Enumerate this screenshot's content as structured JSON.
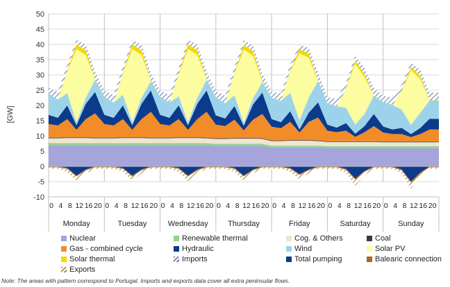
{
  "chart_data": {
    "type": "area",
    "title": "",
    "ylabel": "[GW]",
    "ylim": [
      -10,
      50
    ],
    "yticks": [
      -10,
      -5,
      0,
      5,
      10,
      15,
      20,
      25,
      30,
      35,
      40,
      45,
      50
    ],
    "grid": "horizontal",
    "legend_position": "bottom",
    "days": [
      "Monday",
      "Tuesday",
      "Wednesday",
      "Thursday",
      "Friday",
      "Saturday",
      "Sunday"
    ],
    "hour_labels": [
      "0",
      "4",
      "8",
      "12",
      "16",
      "20"
    ],
    "x_hours": [
      0,
      4,
      8,
      12,
      16,
      20
    ],
    "note": "Note: The areas with pattern correspond to Portugal. Imports and exports data cover all extra peninsular flows.",
    "series": [
      {
        "name": "Nuclear",
        "color": "#a5a5dc",
        "pattern": false,
        "values": [
          [
            7,
            7,
            7,
            7,
            7,
            7
          ],
          [
            7,
            7,
            7,
            7,
            7,
            7
          ],
          [
            7,
            7,
            7,
            7,
            7,
            7
          ],
          [
            6.8,
            6.8,
            6.8,
            6.8,
            6.8,
            6.8
          ],
          [
            6.2,
            6.2,
            6.2,
            6.2,
            6.2,
            6.2
          ],
          [
            6,
            6,
            6,
            6,
            6,
            6
          ],
          [
            6,
            6,
            6,
            6,
            6,
            6
          ]
        ]
      },
      {
        "name": "Renewable thermal",
        "color": "#8fd48f",
        "pattern": false,
        "values": [
          [
            0.6,
            0.6,
            0.6,
            0.6,
            0.6,
            0.6
          ],
          [
            0.6,
            0.6,
            0.6,
            0.6,
            0.6,
            0.6
          ],
          [
            0.6,
            0.6,
            0.6,
            0.6,
            0.6,
            0.6
          ],
          [
            0.6,
            0.6,
            0.6,
            0.6,
            0.6,
            0.6
          ],
          [
            0.6,
            0.6,
            0.6,
            0.6,
            0.6,
            0.6
          ],
          [
            0.6,
            0.6,
            0.6,
            0.6,
            0.6,
            0.6
          ],
          [
            0.6,
            0.6,
            0.6,
            0.6,
            0.6,
            0.6
          ]
        ]
      },
      {
        "name": "Cog. & Others",
        "color": "#efe6cf",
        "pattern": false,
        "values": [
          [
            1.6,
            1.6,
            1.7,
            1.7,
            1.7,
            1.6
          ],
          [
            1.6,
            1.6,
            1.7,
            1.7,
            1.7,
            1.6
          ],
          [
            1.6,
            1.6,
            1.7,
            1.7,
            1.7,
            1.6
          ],
          [
            1.6,
            1.6,
            1.7,
            1.7,
            1.7,
            1.6
          ],
          [
            1.5,
            1.5,
            1.6,
            1.6,
            1.6,
            1.5
          ],
          [
            1.4,
            1.4,
            1.4,
            1.4,
            1.4,
            1.4
          ],
          [
            1.3,
            1.3,
            1.3,
            1.3,
            1.3,
            1.3
          ]
        ]
      },
      {
        "name": "Coal",
        "color": "#3a3a3a",
        "pattern": false,
        "values": [
          [
            0.2,
            0.2,
            0.2,
            0.2,
            0.2,
            0.2
          ],
          [
            0.2,
            0.2,
            0.2,
            0.2,
            0.2,
            0.2
          ],
          [
            0.2,
            0.2,
            0.2,
            0.2,
            0.2,
            0.2
          ],
          [
            0.2,
            0.2,
            0.2,
            0.2,
            0.2,
            0.2
          ],
          [
            0.2,
            0.2,
            0.2,
            0.2,
            0.2,
            0.2
          ],
          [
            0.2,
            0.2,
            0.2,
            0.2,
            0.2,
            0.2
          ],
          [
            0.2,
            0.2,
            0.2,
            0.2,
            0.2,
            0.2
          ]
        ]
      },
      {
        "name": "Gas - combined cycle",
        "color": "#f28c28",
        "pattern": false,
        "values": [
          [
            4.5,
            4,
            6,
            2.5,
            6,
            8
          ],
          [
            4.5,
            4,
            6,
            2.5,
            6,
            8.5
          ],
          [
            4.5,
            4,
            6,
            2.5,
            6,
            8.5
          ],
          [
            4.5,
            4,
            6,
            2.5,
            6,
            8
          ],
          [
            4.5,
            4,
            6,
            2.5,
            6,
            7.5
          ],
          [
            3.5,
            3,
            3.5,
            1.5,
            3,
            5
          ],
          [
            3,
            2.5,
            2.5,
            1.5,
            2.5,
            4
          ]
        ]
      },
      {
        "name": "Hydraulic",
        "color": "#0c3b8c",
        "pattern": false,
        "values": [
          [
            3,
            2.5,
            4.5,
            1.5,
            5,
            7
          ],
          [
            3,
            2.5,
            4.5,
            1.5,
            5,
            7
          ],
          [
            3,
            2.5,
            4.5,
            1.5,
            5,
            7
          ],
          [
            3,
            2.5,
            4.5,
            1.5,
            5,
            7
          ],
          [
            2.5,
            2,
            3.5,
            1,
            3,
            5
          ],
          [
            2,
            1.5,
            2.5,
            1,
            2,
            4
          ],
          [
            2,
            1.5,
            2,
            1,
            2,
            3.5
          ]
        ]
      },
      {
        "name": "Wind",
        "color": "#9dd3ea",
        "pattern": false,
        "values": [
          [
            7,
            6,
            4,
            1,
            2,
            4
          ],
          [
            6,
            5,
            3.5,
            1,
            2,
            3
          ],
          [
            6,
            5,
            3,
            1,
            2,
            3.5
          ],
          [
            6,
            5,
            3.5,
            1,
            2,
            3.5
          ],
          [
            7,
            7,
            6,
            3,
            5,
            7
          ],
          [
            7,
            7,
            5,
            3,
            4,
            6
          ],
          [
            8,
            8,
            6,
            3,
            5,
            6
          ]
        ]
      },
      {
        "name": "Solar PV",
        "color": "#fcfca0",
        "pattern": false,
        "values": [
          [
            0,
            0,
            7,
            24,
            14,
            0
          ],
          [
            0,
            0,
            7,
            24,
            14,
            0
          ],
          [
            0,
            0,
            7,
            24,
            14,
            0
          ],
          [
            0,
            0,
            7,
            24,
            14,
            0
          ],
          [
            0,
            0,
            7,
            22,
            13,
            0
          ],
          [
            0,
            0,
            6,
            20,
            12,
            0
          ],
          [
            0,
            0,
            6,
            18,
            11,
            0
          ]
        ]
      },
      {
        "name": "Solar thermal",
        "color": "#f5d800",
        "pattern": false,
        "values": [
          [
            0,
            0,
            0.3,
            1.5,
            1.5,
            0.2
          ],
          [
            0,
            0,
            0.3,
            1.5,
            1.5,
            0.2
          ],
          [
            0,
            0,
            0.3,
            1.5,
            1.5,
            0.2
          ],
          [
            0,
            0,
            0.3,
            1.5,
            1.5,
            0.2
          ],
          [
            0,
            0,
            0.3,
            1.3,
            1.3,
            0.2
          ],
          [
            0,
            0,
            0.2,
            1,
            1,
            0.1
          ],
          [
            0,
            0,
            0.2,
            1,
            1,
            0.1
          ]
        ]
      },
      {
        "name": "Imports",
        "color": "#8a9ec8",
        "pattern": true,
        "values": [
          [
            2,
            2.5,
            2,
            1.5,
            2,
            2.5
          ],
          [
            2,
            2.5,
            2,
            1.5,
            2,
            2.5
          ],
          [
            2,
            2.5,
            2,
            1.5,
            2,
            2.5
          ],
          [
            2,
            2.5,
            2,
            1.5,
            2,
            2.5
          ],
          [
            2,
            2.5,
            2,
            1.5,
            2,
            2.5
          ],
          [
            2,
            2.5,
            2,
            1.5,
            2,
            2.5
          ],
          [
            2,
            2.5,
            2,
            1.5,
            2,
            2.5
          ]
        ]
      },
      {
        "name": "Total pumping",
        "color": "#0c3b8c",
        "pattern": false,
        "values": [
          [
            0,
            0,
            -0.5,
            -3,
            -1,
            0
          ],
          [
            0,
            0,
            -0.5,
            -3,
            -1,
            0
          ],
          [
            0,
            0,
            -0.5,
            -3,
            -1,
            0
          ],
          [
            0,
            0,
            -0.5,
            -3,
            -1,
            0
          ],
          [
            0,
            0,
            -0.5,
            -2.5,
            -1,
            0
          ],
          [
            0,
            0,
            -0.8,
            -4,
            -1.5,
            0
          ],
          [
            0,
            0,
            -1,
            -5,
            -2,
            0
          ]
        ]
      },
      {
        "name": "Balearic connection",
        "color": "#b5651d",
        "pattern": false,
        "values": [
          [
            -0.3,
            -0.3,
            -0.3,
            -0.3,
            -0.3,
            -0.3
          ],
          [
            -0.3,
            -0.3,
            -0.3,
            -0.3,
            -0.3,
            -0.3
          ],
          [
            -0.3,
            -0.3,
            -0.3,
            -0.3,
            -0.3,
            -0.3
          ],
          [
            -0.3,
            -0.3,
            -0.3,
            -0.3,
            -0.3,
            -0.3
          ],
          [
            -0.3,
            -0.3,
            -0.3,
            -0.3,
            -0.3,
            -0.3
          ],
          [
            -0.3,
            -0.3,
            -0.3,
            -0.3,
            -0.3,
            -0.3
          ],
          [
            -0.3,
            -0.3,
            -0.3,
            -0.3,
            -0.3,
            -0.3
          ]
        ]
      },
      {
        "name": "Exports",
        "color": "#c9a14a",
        "pattern": true,
        "values": [
          [
            -0.5,
            -0.5,
            -1,
            -1.5,
            -1,
            -0.5
          ],
          [
            -0.5,
            -0.5,
            -1,
            -1.5,
            -1,
            -0.5
          ],
          [
            -0.5,
            -0.5,
            -1,
            -1.5,
            -1,
            -0.5
          ],
          [
            -0.5,
            -0.5,
            -1,
            -1.5,
            -1,
            -0.5
          ],
          [
            -0.5,
            -0.5,
            -1,
            -1.5,
            -1,
            -0.5
          ],
          [
            -0.5,
            -0.5,
            -1,
            -2,
            -1,
            -0.5
          ],
          [
            -0.5,
            -0.5,
            -1,
            -2,
            -1,
            -0.5
          ]
        ]
      }
    ]
  }
}
